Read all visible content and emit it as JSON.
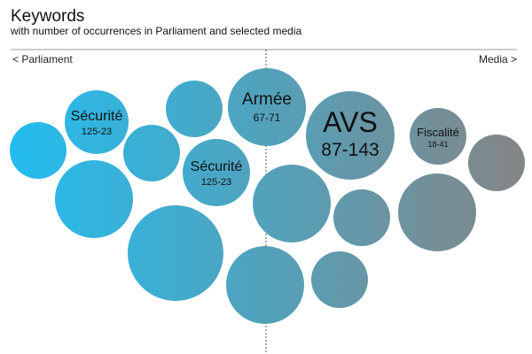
{
  "header": {
    "title": "Keywords",
    "subtitle": "with number of occurrences in Parliament and selected media"
  },
  "axis": {
    "left_label": "< Parliament",
    "right_label": "Media >"
  },
  "colors": {
    "parliament": "#22bdf0",
    "media": "#858585",
    "axis_line": "#999999",
    "center_line": "#555555",
    "label_text": "#111111"
  },
  "chart_data": {
    "type": "bubble",
    "legend": "none",
    "grid": false,
    "bubbles": [
      {
        "name": "Sécurité",
        "value_label": "125-23",
        "parliament": 125,
        "media": 23,
        "labeled": true
      },
      {
        "name": "Sécurité",
        "value_label": "125-23",
        "parliament": 125,
        "media": 23,
        "labeled": true
      },
      {
        "name": "Armée",
        "value_label": "67-71",
        "parliament": 67,
        "media": 71,
        "labeled": true
      },
      {
        "name": "AVS",
        "value_label": "87-143",
        "parliament": 87,
        "media": 143,
        "labeled": true
      },
      {
        "name": "Fiscalité",
        "value_label": "18-41",
        "parliament": 18,
        "media": 41,
        "labeled": true
      },
      {
        "name": "",
        "value_label": "",
        "labeled": false
      },
      {
        "name": "",
        "value_label": "",
        "labeled": false
      },
      {
        "name": "",
        "value_label": "",
        "labeled": false
      },
      {
        "name": "",
        "value_label": "",
        "labeled": false
      },
      {
        "name": "",
        "value_label": "",
        "labeled": false
      },
      {
        "name": "",
        "value_label": "",
        "labeled": false
      },
      {
        "name": "",
        "value_label": "",
        "labeled": false
      },
      {
        "name": "",
        "value_label": "",
        "labeled": false
      },
      {
        "name": "",
        "value_label": "",
        "labeled": false
      },
      {
        "name": "",
        "value_label": "",
        "labeled": false
      },
      {
        "name": "",
        "value_label": "",
        "labeled": false
      },
      {
        "name": "",
        "value_label": "",
        "labeled": false
      },
      {
        "name": "",
        "value_label": "",
        "labeled": false
      }
    ]
  }
}
